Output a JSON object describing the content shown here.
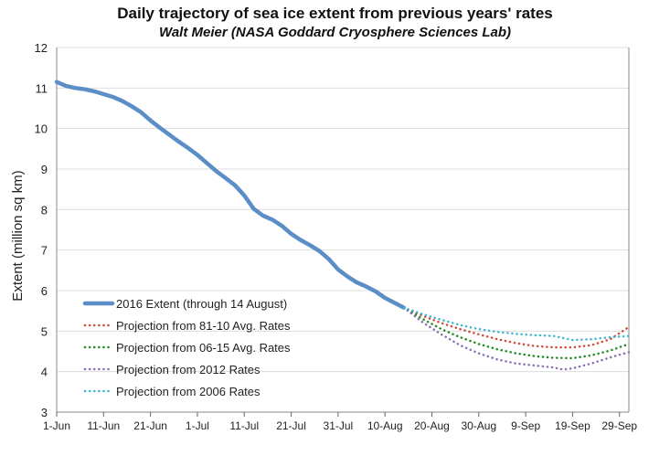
{
  "chart_data": {
    "type": "line",
    "title": "Daily trajectory of sea ice extent from previous years' rates",
    "subtitle": "Walt Meier (NASA Goddard Cryosphere Sciences Lab)",
    "xlabel": "",
    "ylabel": "Extent (million sq km)",
    "ylim": [
      3,
      12
    ],
    "yticks": [
      3,
      4,
      5,
      6,
      7,
      8,
      9,
      10,
      11,
      12
    ],
    "xlim_days": [
      0,
      122
    ],
    "xtick_days": [
      0,
      10,
      20,
      30,
      40,
      50,
      60,
      70,
      80,
      90,
      100,
      110,
      120
    ],
    "xtick_labels": [
      "1-Jun",
      "11-Jun",
      "21-Jun",
      "1-Jul",
      "11-Jul",
      "21-Jul",
      "31-Jul",
      "10-Aug",
      "20-Aug",
      "30-Aug",
      "9-Sep",
      "19-Sep",
      "29-Sep"
    ],
    "grid": true,
    "legend_position": "bottom-left",
    "series": [
      {
        "name": "2016 Extent (through 14 August)",
        "style": "solid",
        "color": "#5b8ec6",
        "x": [
          0,
          2,
          4,
          6,
          8,
          10,
          12,
          14,
          16,
          18,
          20,
          22,
          24,
          26,
          28,
          30,
          32,
          34,
          36,
          38,
          40,
          42,
          44,
          46,
          48,
          50,
          52,
          54,
          56,
          58,
          60,
          62,
          64,
          66,
          68,
          70,
          72,
          74
        ],
        "y": [
          11.15,
          11.05,
          11.0,
          10.97,
          10.92,
          10.85,
          10.78,
          10.68,
          10.55,
          10.4,
          10.2,
          10.02,
          9.85,
          9.68,
          9.52,
          9.35,
          9.15,
          8.95,
          8.78,
          8.6,
          8.35,
          8.02,
          7.85,
          7.75,
          7.6,
          7.4,
          7.25,
          7.12,
          6.98,
          6.78,
          6.52,
          6.35,
          6.2,
          6.1,
          5.98,
          5.82,
          5.7,
          5.58
        ]
      },
      {
        "name": "Projection from 81-10 Avg. Rates",
        "style": "dotted",
        "color": "#d04a3c",
        "x": [
          74,
          78,
          82,
          86,
          90,
          94,
          98,
          102,
          106,
          110,
          114,
          118,
          122
        ],
        "y": [
          5.58,
          5.38,
          5.2,
          5.05,
          4.92,
          4.8,
          4.7,
          4.63,
          4.6,
          4.6,
          4.65,
          4.8,
          5.1
        ]
      },
      {
        "name": "Projection from 06-15 Avg. Rates",
        "style": "dotted",
        "color": "#1f8a1f",
        "x": [
          74,
          78,
          82,
          86,
          90,
          94,
          98,
          102,
          106,
          110,
          114,
          118,
          122
        ],
        "y": [
          5.58,
          5.3,
          5.05,
          4.85,
          4.68,
          4.55,
          4.45,
          4.38,
          4.34,
          4.33,
          4.4,
          4.52,
          4.68
        ]
      },
      {
        "name": "Projection from 2012 Rates",
        "style": "dotted",
        "color": "#8a70b0",
        "x": [
          74,
          78,
          82,
          86,
          90,
          94,
          98,
          102,
          106,
          108,
          110,
          114,
          118,
          122
        ],
        "y": [
          5.58,
          5.22,
          4.92,
          4.65,
          4.45,
          4.3,
          4.2,
          4.15,
          4.1,
          4.05,
          4.08,
          4.2,
          4.35,
          4.48
        ]
      },
      {
        "name": "Projection from 2006 Rates",
        "style": "dotted",
        "color": "#3ab8d0",
        "x": [
          74,
          78,
          82,
          86,
          90,
          94,
          98,
          102,
          106,
          110,
          114,
          118,
          122
        ],
        "y": [
          5.58,
          5.42,
          5.28,
          5.15,
          5.05,
          4.98,
          4.93,
          4.9,
          4.88,
          4.78,
          4.8,
          4.85,
          4.88
        ]
      }
    ]
  }
}
